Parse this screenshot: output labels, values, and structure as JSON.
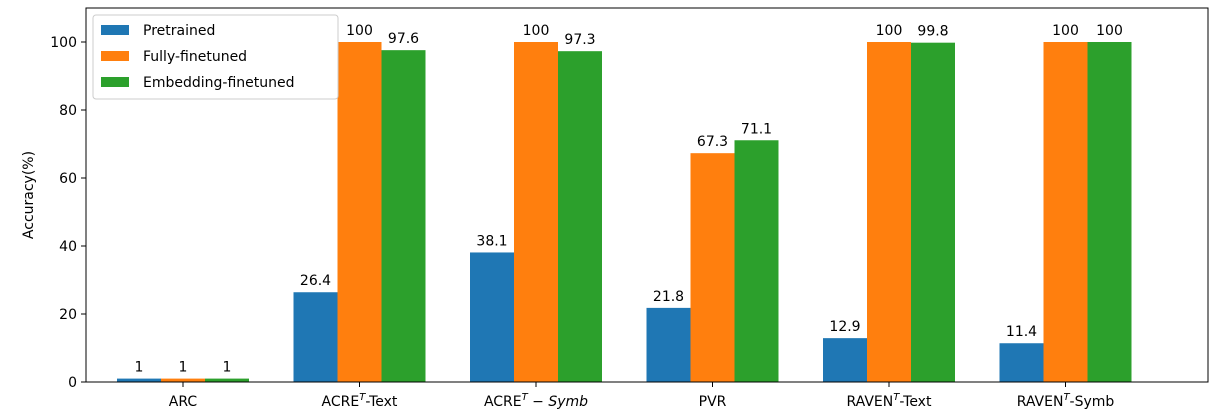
{
  "chart_data": {
    "type": "bar",
    "categories": [
      {
        "base": "ARC",
        "sup": "",
        "suffix": ""
      },
      {
        "base": "ACRE",
        "sup": "T",
        "suffix": "-Text"
      },
      {
        "base": "ACRE",
        "sup": "T",
        "suffix": " − Symb"
      },
      {
        "base": "PVR",
        "sup": "",
        "suffix": ""
      },
      {
        "base": "RAVEN",
        "sup": "T",
        "suffix": "-Text"
      },
      {
        "base": "RAVEN",
        "sup": "T",
        "suffix": "-Symb"
      }
    ],
    "series": [
      {
        "name": "Pretrained",
        "color": "#1f77b4",
        "values": [
          1,
          26.4,
          38.1,
          21.8,
          12.9,
          11.4
        ],
        "labels": [
          "1",
          "26.4",
          "38.1",
          "21.8",
          "12.9",
          "11.4"
        ]
      },
      {
        "name": "Fully-finetuned",
        "color": "#ff7f0e",
        "values": [
          1,
          100,
          100,
          67.3,
          100,
          100
        ],
        "labels": [
          "1",
          "100",
          "100",
          "67.3",
          "100",
          "100"
        ]
      },
      {
        "name": "Embedding-finetuned",
        "color": "#2ca02c",
        "values": [
          1,
          97.6,
          97.3,
          71.1,
          99.8,
          100
        ],
        "labels": [
          "1",
          "97.6",
          "97.3",
          "71.1",
          "99.8",
          "100"
        ]
      }
    ],
    "title": "",
    "xlabel": "",
    "ylabel": "Accuracy(%)",
    "ylim": [
      0,
      110
    ],
    "yticks": [
      0,
      20,
      40,
      60,
      80,
      100
    ],
    "grid": false,
    "legend_position": "top-left"
  }
}
